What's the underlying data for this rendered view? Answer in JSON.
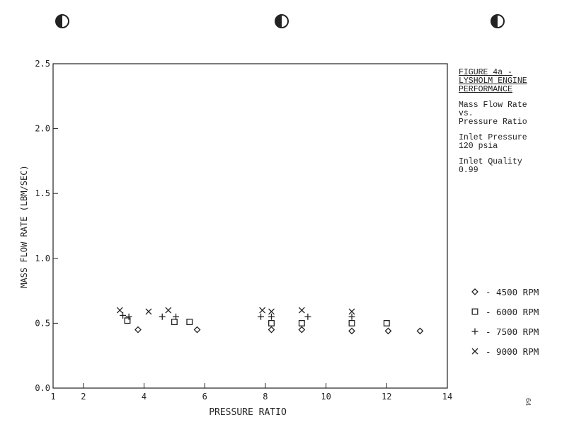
{
  "notes": {
    "title_lines": [
      "FIGURE 4a -",
      "LYSHOLM ENGINE",
      "PERFORMANCE"
    ],
    "subtitle_lines": [
      "Mass Flow Rate",
      "vs.",
      "Pressure Ratio"
    ],
    "inlet_pressure_lines": [
      "Inlet Pressure",
      "120 psia"
    ],
    "inlet_quality_lines": [
      "Inlet Quality",
      "0.99"
    ]
  },
  "page_number": "64",
  "chart_data": {
    "type": "scatter",
    "title": "FIGURE 4a - LYSHOLM ENGINE PERFORMANCE",
    "xlabel": "PRESSURE RATIO",
    "ylabel": "MASS FLOW RATE (LBM/SEC)",
    "xlim": [
      1,
      14
    ],
    "ylim": [
      0,
      2.5
    ],
    "x_ticks": [
      1,
      2,
      4,
      6,
      8,
      10,
      12,
      14
    ],
    "y_ticks": [
      0,
      0.5,
      1.0,
      1.5,
      2.0,
      2.5
    ],
    "x_tick_labels": [
      "1",
      "2",
      "4",
      "6",
      "8",
      "10",
      "12",
      "14"
    ],
    "y_tick_labels": [
      "0.0",
      "0.5",
      "1.0",
      "1.5",
      "2.0",
      "2.5"
    ],
    "grid": false,
    "legend_position": "right",
    "series": [
      {
        "name": "4500 RPM",
        "marker": "diamond",
        "points": [
          [
            3.8,
            0.45
          ],
          [
            5.75,
            0.45
          ],
          [
            8.2,
            0.45
          ],
          [
            9.2,
            0.45
          ],
          [
            10.85,
            0.44
          ],
          [
            12.05,
            0.44
          ],
          [
            13.1,
            0.44
          ]
        ]
      },
      {
        "name": "6000 RPM",
        "marker": "square",
        "points": [
          [
            3.45,
            0.52
          ],
          [
            5.0,
            0.51
          ],
          [
            5.5,
            0.51
          ],
          [
            8.2,
            0.5
          ],
          [
            9.2,
            0.5
          ],
          [
            10.85,
            0.5
          ],
          [
            12.0,
            0.5
          ]
        ]
      },
      {
        "name": "7500 RPM",
        "marker": "plus",
        "points": [
          [
            3.3,
            0.56
          ],
          [
            3.5,
            0.55
          ],
          [
            4.6,
            0.55
          ],
          [
            5.05,
            0.55
          ],
          [
            7.85,
            0.55
          ],
          [
            8.2,
            0.55
          ],
          [
            9.4,
            0.55
          ],
          [
            10.85,
            0.55
          ]
        ]
      },
      {
        "name": "9000 RPM",
        "marker": "x",
        "points": [
          [
            3.2,
            0.6
          ],
          [
            4.15,
            0.59
          ],
          [
            4.8,
            0.6
          ],
          [
            7.9,
            0.6
          ],
          [
            8.2,
            0.59
          ],
          [
            9.2,
            0.6
          ],
          [
            10.85,
            0.59
          ]
        ]
      }
    ]
  }
}
